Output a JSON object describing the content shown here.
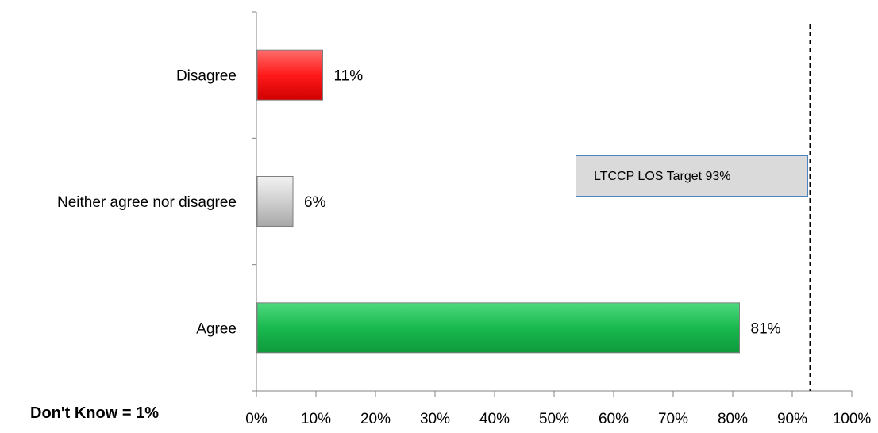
{
  "chart_data": {
    "type": "bar",
    "orientation": "horizontal",
    "categories": [
      "Disagree",
      "Neither agree nor disagree",
      "Agree"
    ],
    "values": [
      11,
      6,
      81
    ],
    "data_labels": [
      "11%",
      "6%",
      "81%"
    ],
    "bar_colors": [
      "#ff1a1a",
      "#d4d4d4",
      "#19b94f"
    ],
    "xlim": [
      0,
      100
    ],
    "x_ticks": [
      "0%",
      "10%",
      "20%",
      "30%",
      "40%",
      "50%",
      "60%",
      "70%",
      "80%",
      "90%",
      "100%"
    ],
    "grid": false,
    "target": {
      "value": 93,
      "label": "LTCCP LOS Target 93%"
    }
  },
  "footnote": "Don't Know = 1%"
}
